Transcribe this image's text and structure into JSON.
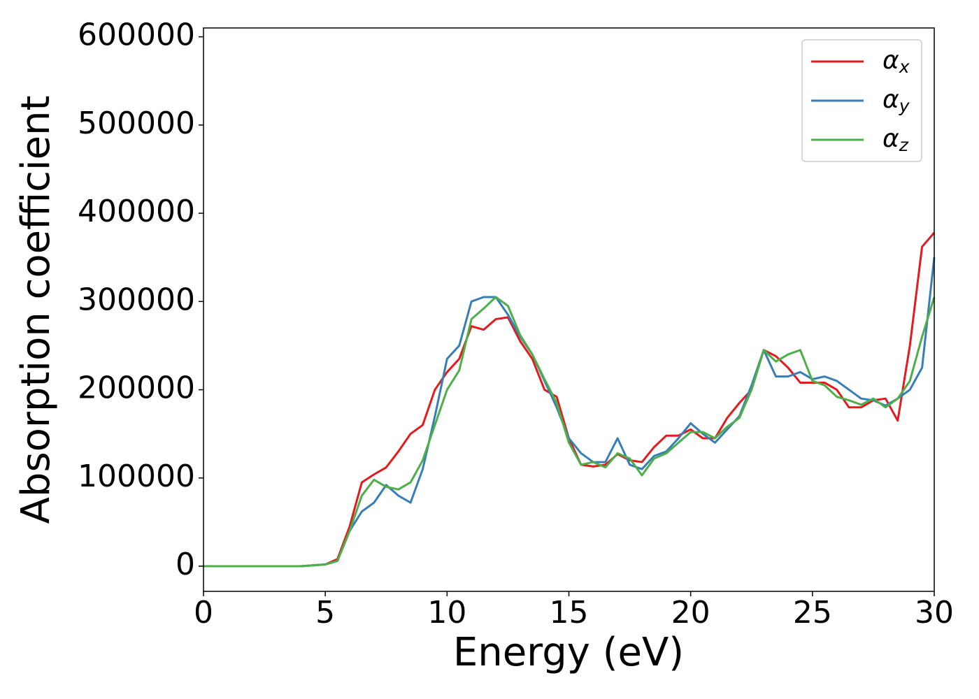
{
  "chart_data": {
    "type": "line",
    "xlabel": "Energy (eV)",
    "ylabel": "Absorption coefficient",
    "x": [
      0,
      0.5,
      1,
      1.5,
      2,
      2.5,
      3,
      3.5,
      4,
      4.5,
      5,
      5.5,
      6,
      6.5,
      7,
      7.5,
      8,
      8.5,
      9,
      9.5,
      10,
      10.5,
      11,
      11.5,
      12,
      12.5,
      13,
      13.5,
      14,
      14.5,
      15,
      15.5,
      16,
      16.5,
      17,
      17.5,
      18,
      18.5,
      19,
      19.5,
      20,
      20.5,
      21,
      21.5,
      22,
      22.5,
      23,
      23.5,
      24,
      24.5,
      25,
      25.5,
      26,
      26.5,
      27,
      27.5,
      28,
      28.5,
      29,
      29.5,
      30
    ],
    "series": [
      {
        "name": "αx",
        "color": "#e41a1c",
        "values": [
          0,
          0,
          0,
          0,
          0,
          0,
          0,
          0,
          0,
          1000,
          2000,
          8000,
          45000,
          95000,
          104000,
          112000,
          130000,
          150000,
          160000,
          200000,
          220000,
          235000,
          272000,
          268000,
          280000,
          282000,
          255000,
          235000,
          200000,
          192000,
          145000,
          115000,
          113000,
          115000,
          127000,
          120000,
          118000,
          135000,
          148000,
          148000,
          155000,
          145000,
          145000,
          168000,
          185000,
          200000,
          245000,
          238000,
          225000,
          208000,
          208000,
          208000,
          200000,
          180000,
          180000,
          188000,
          190000,
          165000,
          250000,
          362000,
          378000
        ]
      },
      {
        "name": "αy",
        "color": "#377eb8",
        "values": [
          0,
          0,
          0,
          0,
          0,
          0,
          0,
          0,
          0,
          1000,
          2000,
          6000,
          40000,
          62000,
          72000,
          92000,
          80000,
          72000,
          110000,
          170000,
          235000,
          250000,
          300000,
          305000,
          305000,
          285000,
          260000,
          240000,
          210000,
          180000,
          145000,
          128000,
          118000,
          118000,
          145000,
          115000,
          110000,
          125000,
          130000,
          145000,
          162000,
          150000,
          140000,
          155000,
          170000,
          205000,
          245000,
          215000,
          215000,
          220000,
          212000,
          215000,
          210000,
          200000,
          190000,
          188000,
          182000,
          190000,
          200000,
          225000,
          350000
        ]
      },
      {
        "name": "αz",
        "color": "#4daf4a",
        "values": [
          0,
          0,
          0,
          0,
          0,
          0,
          0,
          0,
          0,
          1000,
          2000,
          6000,
          40000,
          80000,
          98000,
          90000,
          87000,
          95000,
          120000,
          160000,
          200000,
          222000,
          280000,
          292000,
          305000,
          295000,
          262000,
          240000,
          212000,
          185000,
          140000,
          115000,
          118000,
          112000,
          128000,
          122000,
          103000,
          122000,
          128000,
          140000,
          152000,
          152000,
          145000,
          158000,
          168000,
          200000,
          245000,
          232000,
          240000,
          245000,
          210000,
          205000,
          192000,
          188000,
          183000,
          190000,
          180000,
          190000,
          210000,
          260000,
          305000
        ]
      }
    ],
    "xlim": [
      0,
      30
    ],
    "xticks": [
      0,
      5,
      10,
      15,
      20,
      25,
      30
    ],
    "ylim": [
      -28500,
      610000
    ],
    "yticks": [
      0,
      100000,
      200000,
      300000,
      400000,
      500000,
      600000
    ],
    "legend": "upper right"
  }
}
